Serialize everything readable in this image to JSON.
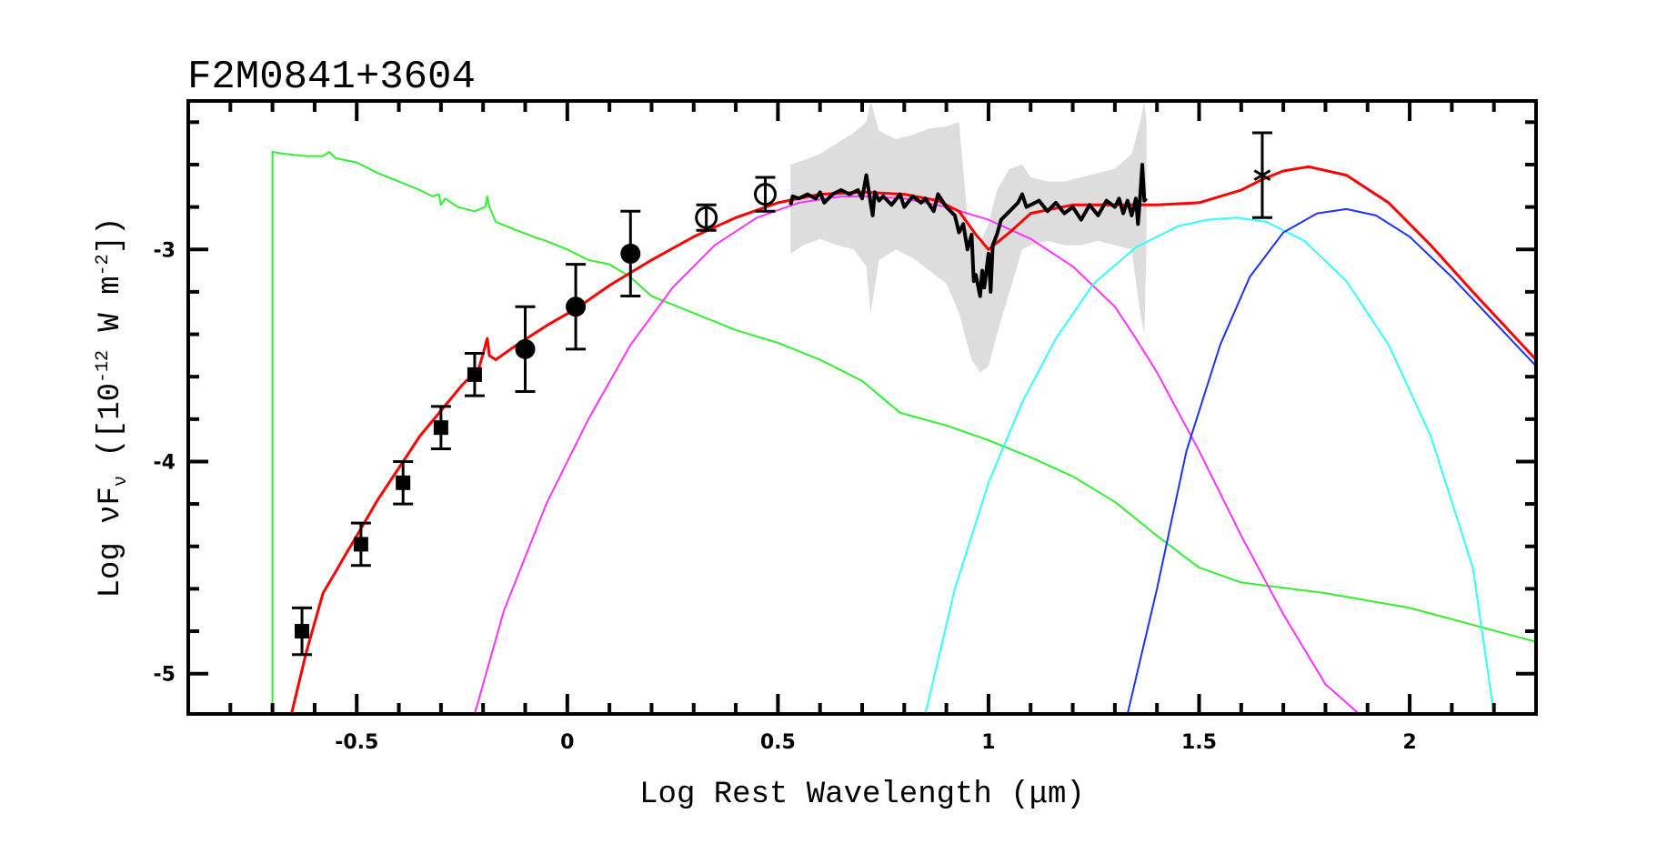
{
  "chart_data": {
    "type": "line",
    "title": "F2M0841+3604",
    "xlabel": "Log Rest Wavelength (μm)",
    "ylabel_parts": [
      "Log νF",
      "ν",
      " ([10",
      "-12",
      " W m",
      "-2",
      "])"
    ],
    "ylabel": "Log νFν ([10^-12 W m^-2])",
    "xlim": [
      -0.9,
      2.3
    ],
    "ylim": [
      -5.19,
      -2.3
    ],
    "grid": false,
    "xticks": [
      {
        "value": -0.5,
        "label": "-0.5"
      },
      {
        "value": 0,
        "label": "0"
      },
      {
        "value": 0.5,
        "label": "0.5"
      },
      {
        "value": 1,
        "label": "1"
      },
      {
        "value": 1.5,
        "label": "1.5"
      },
      {
        "value": 2,
        "label": "2"
      }
    ],
    "yticks": [
      {
        "value": -3,
        "label": "-3"
      },
      {
        "value": -4,
        "label": "-4"
      },
      {
        "value": -5,
        "label": "-5"
      }
    ],
    "x_minor_step": 0.1,
    "y_minor_step": 0.2,
    "colors": {
      "total_model": "#ff0000",
      "quasar_disk": "#33ee33",
      "hot_dust": "#ff33ff",
      "warm_dust": "#33ffff",
      "cold_dust": "#1a33ff",
      "spectrum": "#000000",
      "spectrum_error": "#dddddd",
      "points": "#000000"
    },
    "series": [
      {
        "name": "total_model",
        "x": [
          -0.655,
          -0.62,
          -0.58,
          -0.55,
          -0.53,
          -0.5,
          -0.45,
          -0.4,
          -0.35,
          -0.3,
          -0.25,
          -0.21,
          -0.19,
          -0.185,
          -0.17,
          -0.12,
          -0.05,
          0.02,
          0.1,
          0.2,
          0.3,
          0.4,
          0.5,
          0.6,
          0.7,
          0.8,
          0.88,
          0.93,
          0.97,
          1.0,
          1.05,
          1.1,
          1.2,
          1.3,
          1.4,
          1.5,
          1.6,
          1.65,
          1.7,
          1.76,
          1.85,
          1.95,
          2.05,
          2.15,
          2.3
        ],
        "y": [
          -5.19,
          -4.9,
          -4.62,
          -4.52,
          -4.45,
          -4.35,
          -4.18,
          -4.03,
          -3.88,
          -3.76,
          -3.64,
          -3.56,
          -3.42,
          -3.5,
          -3.52,
          -3.45,
          -3.36,
          -3.28,
          -3.17,
          -3.05,
          -2.94,
          -2.85,
          -2.78,
          -2.74,
          -2.73,
          -2.74,
          -2.77,
          -2.82,
          -2.93,
          -3.0,
          -2.92,
          -2.83,
          -2.79,
          -2.79,
          -2.79,
          -2.78,
          -2.72,
          -2.67,
          -2.63,
          -2.61,
          -2.65,
          -2.78,
          -2.98,
          -3.2,
          -3.52
        ]
      },
      {
        "name": "quasar_disk",
        "x": [
          -0.7,
          -0.7,
          -0.67,
          -0.62,
          -0.58,
          -0.565,
          -0.55,
          -0.5,
          -0.45,
          -0.4,
          -0.35,
          -0.32,
          -0.305,
          -0.3,
          -0.29,
          -0.26,
          -0.22,
          -0.195,
          -0.19,
          -0.185,
          -0.17,
          -0.12,
          -0.08,
          -0.05,
          0.0,
          0.05,
          0.1,
          0.15,
          0.2,
          0.3,
          0.4,
          0.5,
          0.6,
          0.7,
          0.79,
          0.9,
          1.0,
          1.1,
          1.2,
          1.3,
          1.4,
          1.5,
          1.6,
          1.8,
          2.0,
          2.3
        ],
        "y": [
          -5.19,
          -2.54,
          -2.55,
          -2.56,
          -2.56,
          -2.54,
          -2.57,
          -2.59,
          -2.64,
          -2.68,
          -2.72,
          -2.75,
          -2.74,
          -2.79,
          -2.76,
          -2.8,
          -2.82,
          -2.8,
          -2.75,
          -2.8,
          -2.87,
          -2.91,
          -2.94,
          -2.96,
          -3.0,
          -3.05,
          -3.07,
          -3.13,
          -3.22,
          -3.3,
          -3.38,
          -3.44,
          -3.52,
          -3.62,
          -3.77,
          -3.83,
          -3.9,
          -3.98,
          -4.07,
          -4.19,
          -4.35,
          -4.5,
          -4.57,
          -4.62,
          -4.69,
          -4.85
        ]
      },
      {
        "name": "hot_dust",
        "x": [
          -0.22,
          -0.15,
          -0.05,
          0.05,
          0.15,
          0.25,
          0.35,
          0.45,
          0.55,
          0.65,
          0.71,
          0.8,
          0.9,
          1.0,
          1.1,
          1.2,
          1.3,
          1.35,
          1.4,
          1.5,
          1.6,
          1.7,
          1.8,
          1.88
        ],
        "y": [
          -5.19,
          -4.7,
          -4.2,
          -3.8,
          -3.45,
          -3.18,
          -2.98,
          -2.85,
          -2.78,
          -2.75,
          -2.75,
          -2.76,
          -2.8,
          -2.86,
          -2.95,
          -3.08,
          -3.27,
          -3.42,
          -3.58,
          -3.95,
          -4.35,
          -4.72,
          -5.05,
          -5.19
        ]
      },
      {
        "name": "warm_dust",
        "x": [
          0.85,
          0.92,
          1.0,
          1.08,
          1.16,
          1.25,
          1.35,
          1.45,
          1.52,
          1.59,
          1.66,
          1.75,
          1.85,
          1.95,
          2.05,
          2.15,
          2.2
        ],
        "y": [
          -5.19,
          -4.6,
          -4.1,
          -3.72,
          -3.42,
          -3.16,
          -2.99,
          -2.89,
          -2.86,
          -2.85,
          -2.87,
          -2.96,
          -3.15,
          -3.45,
          -3.88,
          -4.5,
          -5.19
        ]
      },
      {
        "name": "cold_dust",
        "x": [
          1.33,
          1.4,
          1.47,
          1.55,
          1.62,
          1.7,
          1.78,
          1.85,
          1.92,
          2.0,
          2.1,
          2.2,
          2.3
        ],
        "y": [
          -5.19,
          -4.6,
          -3.95,
          -3.45,
          -3.13,
          -2.92,
          -2.83,
          -2.81,
          -2.84,
          -2.94,
          -3.13,
          -3.34,
          -3.55
        ]
      },
      {
        "name": "spectrum",
        "x": [
          0.53,
          0.535,
          0.55,
          0.57,
          0.59,
          0.6,
          0.61,
          0.63,
          0.65,
          0.67,
          0.69,
          0.7,
          0.71,
          0.72,
          0.725,
          0.73,
          0.74,
          0.75,
          0.77,
          0.79,
          0.8,
          0.82,
          0.84,
          0.85,
          0.87,
          0.88,
          0.9,
          0.92,
          0.93,
          0.94,
          0.95,
          0.96,
          0.965,
          0.97,
          0.98,
          0.985,
          0.99,
          1.0,
          1.005,
          1.01,
          1.02,
          1.03,
          1.05,
          1.07,
          1.08,
          1.09,
          1.1,
          1.12,
          1.14,
          1.16,
          1.18,
          1.2,
          1.22,
          1.24,
          1.26,
          1.28,
          1.3,
          1.31,
          1.32,
          1.33,
          1.34,
          1.35,
          1.355,
          1.36,
          1.365,
          1.37,
          1.375
        ],
        "y": [
          -2.79,
          -2.75,
          -2.76,
          -2.74,
          -2.76,
          -2.73,
          -2.78,
          -2.74,
          -2.72,
          -2.74,
          -2.72,
          -2.76,
          -2.65,
          -2.78,
          -2.84,
          -2.73,
          -2.77,
          -2.75,
          -2.79,
          -2.74,
          -2.8,
          -2.75,
          -2.78,
          -2.76,
          -2.82,
          -2.74,
          -2.8,
          -2.84,
          -2.92,
          -2.88,
          -3.0,
          -2.93,
          -3.15,
          -3.12,
          -3.22,
          -3.1,
          -3.18,
          -3.02,
          -3.2,
          -2.98,
          -2.93,
          -2.86,
          -2.82,
          -2.78,
          -2.74,
          -2.8,
          -2.79,
          -2.77,
          -2.82,
          -2.78,
          -2.83,
          -2.8,
          -2.86,
          -2.79,
          -2.84,
          -2.77,
          -2.8,
          -2.76,
          -2.83,
          -2.77,
          -2.84,
          -2.76,
          -2.88,
          -2.75,
          -2.6,
          -2.77,
          -2.76
        ]
      }
    ],
    "spectrum_error_band": {
      "x": [
        0.53,
        0.56,
        0.6,
        0.64,
        0.68,
        0.71,
        0.72,
        0.74,
        0.78,
        0.82,
        0.86,
        0.9,
        0.93,
        0.95,
        0.96,
        0.98,
        1.0,
        1.02,
        1.05,
        1.08,
        1.1,
        1.14,
        1.18,
        1.22,
        1.26,
        1.3,
        1.34,
        1.36,
        1.37,
        1.375
      ],
      "upper": [
        -2.6,
        -2.58,
        -2.55,
        -2.5,
        -2.45,
        -2.4,
        -2.3,
        -2.44,
        -2.48,
        -2.46,
        -2.43,
        -2.42,
        -2.4,
        -2.85,
        -2.92,
        -2.97,
        -2.88,
        -2.72,
        -2.62,
        -2.6,
        -2.66,
        -2.68,
        -2.68,
        -2.66,
        -2.64,
        -2.62,
        -2.55,
        -2.4,
        -2.3,
        -2.4
      ],
      "lower": [
        -3.02,
        -2.98,
        -2.95,
        -2.98,
        -3.0,
        -3.08,
        -3.3,
        -3.05,
        -3.0,
        -3.04,
        -3.1,
        -3.16,
        -3.3,
        -3.45,
        -3.52,
        -3.58,
        -3.55,
        -3.4,
        -3.2,
        -3.0,
        -2.98,
        -2.96,
        -2.98,
        -2.98,
        -2.96,
        -2.98,
        -3.0,
        -3.3,
        -3.4,
        -3.0
      ]
    },
    "points": [
      {
        "marker": "square",
        "x": -0.63,
        "y": -4.8,
        "err": 0.11
      },
      {
        "marker": "square",
        "x": -0.49,
        "y": -4.39,
        "err": 0.1
      },
      {
        "marker": "square",
        "x": -0.39,
        "y": -4.1,
        "err": 0.1
      },
      {
        "marker": "square",
        "x": -0.3,
        "y": -3.84,
        "err": 0.1
      },
      {
        "marker": "square",
        "x": -0.22,
        "y": -3.59,
        "err": 0.1
      },
      {
        "marker": "filled-circle",
        "x": -0.1,
        "y": -3.47,
        "err": 0.2
      },
      {
        "marker": "filled-circle",
        "x": 0.02,
        "y": -3.27,
        "err": 0.2
      },
      {
        "marker": "filled-circle",
        "x": 0.15,
        "y": -3.02,
        "err": 0.2
      },
      {
        "marker": "open-circle",
        "x": 0.33,
        "y": -2.85,
        "err": 0.06
      },
      {
        "marker": "open-circle",
        "x": 0.47,
        "y": -2.74,
        "err": 0.08
      },
      {
        "marker": "star",
        "x": 1.65,
        "y": -2.65,
        "err": 0.2
      }
    ]
  }
}
